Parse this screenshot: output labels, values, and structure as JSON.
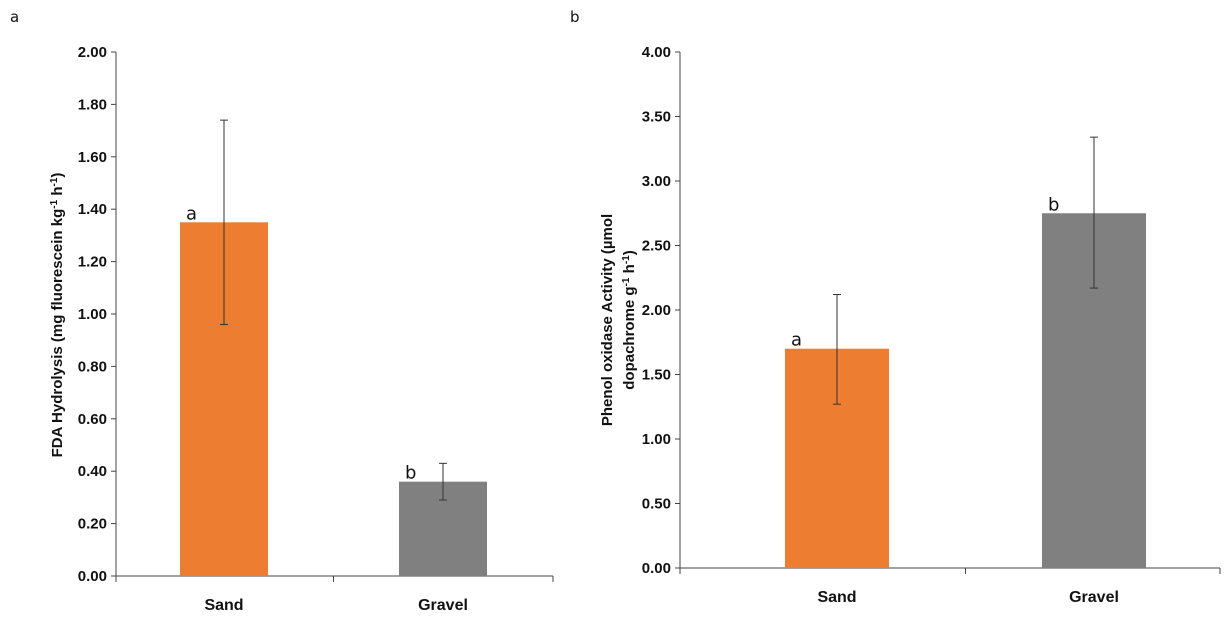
{
  "chart_data": [
    {
      "panel": "a",
      "type": "bar",
      "categories": [
        "Sand",
        "Gravel"
      ],
      "values": [
        1.35,
        0.36
      ],
      "error_high": [
        1.74,
        0.43
      ],
      "error_low": [
        0.96,
        0.29
      ],
      "significance_labels": [
        "a",
        "b"
      ],
      "colors": [
        "#ED7D31",
        "#808080"
      ],
      "ylabel_line1": "FDA Hydrolysis (mg fluorescein kg",
      "ylabel_sup1": "-1",
      "ylabel_mid": " h",
      "ylabel_sup2": "-1",
      "ylabel_end": ")",
      "ylim": [
        0,
        2.0
      ],
      "yticks": [
        "0.00",
        "0.20",
        "0.40",
        "0.60",
        "0.80",
        "1.00",
        "1.20",
        "1.40",
        "1.60",
        "1.80",
        "2.00"
      ],
      "grid": false
    },
    {
      "panel": "b",
      "type": "bar",
      "categories": [
        "Sand",
        "Gravel"
      ],
      "values": [
        1.7,
        2.75
      ],
      "error_high": [
        2.12,
        3.34
      ],
      "error_low": [
        1.27,
        2.17
      ],
      "significance_labels": [
        "a",
        "b"
      ],
      "colors": [
        "#ED7D31",
        "#808080"
      ],
      "ylabel_line1": "Phenol oxidase Activity  (µmol",
      "ylabel_line2": "dopachrome g",
      "ylabel_sup1": "-1",
      "ylabel_mid": " h",
      "ylabel_sup2": "-1",
      "ylabel_end": ")",
      "ylim": [
        0,
        4.0
      ],
      "yticks": [
        "0.00",
        "0.50",
        "1.00",
        "1.50",
        "2.00",
        "2.50",
        "3.00",
        "3.50",
        "4.00"
      ],
      "grid": false
    }
  ]
}
